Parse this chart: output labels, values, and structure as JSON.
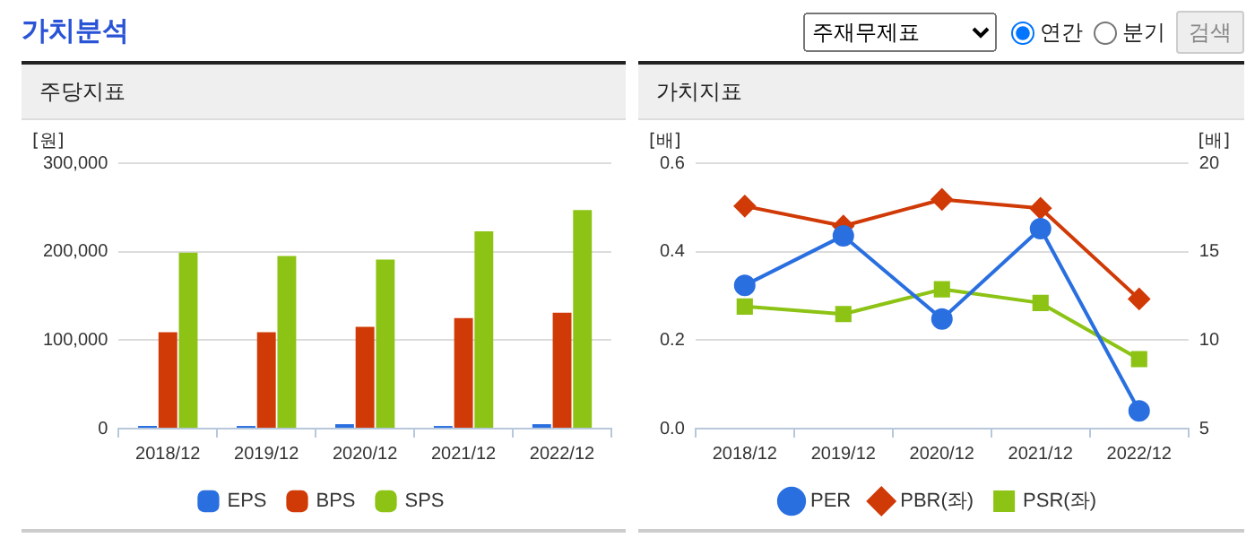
{
  "chart_data": [
    {
      "type": "bar",
      "title": "주당지표",
      "ylabel": "[원]",
      "annotations": [
        "가치분석",
        "주재무제표",
        "연간",
        "분기",
        "검색"
      ],
      "categories": [
        "2018/12",
        "2019/12",
        "2020/12",
        "2021/12",
        "2022/12"
      ],
      "series": [
        {
          "name": "EPS",
          "color": "#2a6fe0",
          "values": [
            3000,
            3000,
            5000,
            3000,
            5000
          ]
        },
        {
          "name": "BPS",
          "color": "#d03a06",
          "values": [
            109000,
            109000,
            115000,
            125000,
            131000
          ]
        },
        {
          "name": "SPS",
          "color": "#8cc314",
          "values": [
            199000,
            195000,
            191000,
            223000,
            247000
          ]
        }
      ],
      "ylim": [
        0,
        300000
      ],
      "yticks": [
        {
          "value": 0,
          "label": "0"
        },
        {
          "value": 100000,
          "label": "100,000"
        },
        {
          "value": 200000,
          "label": "200,000"
        },
        {
          "value": 300000,
          "label": "300,000"
        }
      ],
      "grid": "y",
      "legend": "bottom"
    },
    {
      "type": "line",
      "title": "가치지표",
      "ylabel": "[배]",
      "y2label": "[배]",
      "categories": [
        "2018/12",
        "2019/12",
        "2020/12",
        "2021/12",
        "2022/12"
      ],
      "series": [
        {
          "name": "PER",
          "color": "#2a6fe0",
          "axis": "y2",
          "marker": "circle",
          "values": [
            13.1,
            15.9,
            11.2,
            16.3,
            6.0
          ]
        },
        {
          "name": "PBR(좌)",
          "color": "#d03a06",
          "marker": "diamond",
          "values": [
            0.503,
            0.458,
            0.518,
            0.498,
            0.293
          ]
        },
        {
          "name": "PSR(좌)",
          "color": "#8cc314",
          "marker": "square",
          "values": [
            0.276,
            0.259,
            0.315,
            0.284,
            0.157
          ]
        }
      ],
      "ylim": [
        0,
        0.6
      ],
      "yticks": [
        {
          "value": 0,
          "label": "0.0"
        },
        0.2,
        0.4,
        0.6
      ],
      "y2lim": [
        5,
        20
      ],
      "y2ticks": [
        5,
        10,
        15,
        20
      ],
      "grid": "y",
      "legend": "bottom"
    }
  ]
}
